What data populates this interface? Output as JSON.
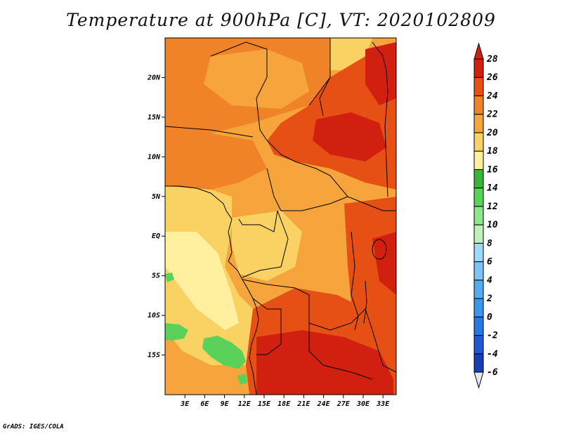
{
  "title": "Temperature at 900hPa [C], VT: 2020102809",
  "credit": "GrADS: IGES/COLA",
  "map": {
    "extent": {
      "lon_min": 0,
      "lon_max": 35,
      "lat_min": -20,
      "lat_max": 25
    },
    "lat_ticks": [
      {
        "value": 20,
        "label": "20N"
      },
      {
        "value": 15,
        "label": "15N"
      },
      {
        "value": 10,
        "label": "10N"
      },
      {
        "value": 5,
        "label": "5N"
      },
      {
        "value": 0,
        "label": "EQ"
      },
      {
        "value": -5,
        "label": "5S"
      },
      {
        "value": -10,
        "label": "10S"
      },
      {
        "value": -15,
        "label": "15S"
      }
    ],
    "lon_ticks": [
      {
        "value": 3,
        "label": "3E"
      },
      {
        "value": 6,
        "label": "6E"
      },
      {
        "value": 9,
        "label": "9E"
      },
      {
        "value": 12,
        "label": "12E"
      },
      {
        "value": 15,
        "label": "15E"
      },
      {
        "value": 18,
        "label": "18E"
      },
      {
        "value": 21,
        "label": "21E"
      },
      {
        "value": 24,
        "label": "24E"
      },
      {
        "value": 27,
        "label": "27E"
      },
      {
        "value": 30,
        "label": "30E"
      },
      {
        "value": 33,
        "label": "33E"
      }
    ]
  },
  "colorbar": {
    "levels": [
      "-6",
      "-4",
      "-2",
      "0",
      "2",
      "4",
      "6",
      "8",
      "10",
      "12",
      "14",
      "16",
      "18",
      "20",
      "22",
      "24",
      "26",
      "28"
    ],
    "colors": [
      "#0a0a78",
      "#1c3cb4",
      "#1f5ad2",
      "#2878e6",
      "#3c96f0",
      "#55aaf0",
      "#7dc3f5",
      "#a0d7fa",
      "#bef0be",
      "#8ce68c",
      "#5ad25a",
      "#3cb43c",
      "#fff0a0",
      "#fad264",
      "#f5a53c",
      "#f08228",
      "#e65014",
      "#d22010",
      "#bb1010"
    ],
    "low_end_color": "#e6e6fa",
    "high_end_color": "#d22010"
  }
}
